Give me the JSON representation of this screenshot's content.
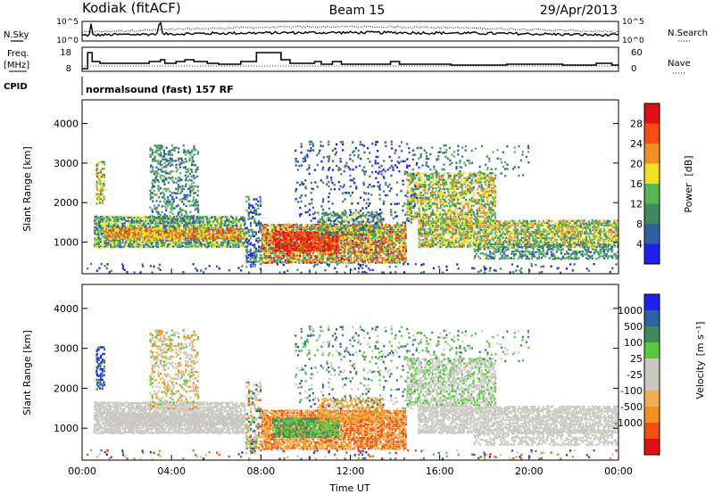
{
  "header": {
    "radar": "Kodiak (fitACF)",
    "beam": "Beam 15",
    "date": "29/Apr/2013"
  },
  "top_panels": {
    "nsky_label": "N.Sky",
    "nsearch_label": "N.Search",
    "noise_ticks": [
      "10^5",
      "10^0"
    ],
    "freq_label": "Freq.",
    "freq_unit": "[MHz]",
    "freq_ticks": [
      "18",
      "8"
    ],
    "nave_label": "Nave",
    "nave_ticks": [
      "60",
      "0"
    ],
    "cpid_label": "CPID",
    "cpid_text": "normalsound (fast) 157 RF"
  },
  "colors": {
    "power": [
      "#1f1ff0",
      "#2e5fa8",
      "#3f8a5c",
      "#58b450",
      "#f0e020",
      "#f09020",
      "#f04f10",
      "#e01010"
    ],
    "velocity": [
      "#e01010",
      "#f04f10",
      "#f09020",
      "#f0b050",
      "#c8c8c0",
      "#c8c8c0",
      "#58c840",
      "#3f8a5c",
      "#2e5fa8",
      "#1f1ff0"
    ]
  },
  "chart_data": [
    {
      "type": "line",
      "name": "noise",
      "series": [
        {
          "name": "N.Sky",
          "style": "solid"
        },
        {
          "name": "N.Search",
          "style": "dotted"
        }
      ],
      "ylim_labels": [
        "10^0",
        "10^5"
      ]
    },
    {
      "type": "line",
      "name": "frequency_nave",
      "xlim_hours": [
        0,
        24
      ],
      "freq_ylim": [
        8,
        18
      ],
      "nave_ylim": [
        0,
        60
      ],
      "freq_steps": [
        [
          0.0,
          8
        ],
        [
          0.25,
          17
        ],
        [
          0.45,
          12
        ],
        [
          0.8,
          11
        ],
        [
          2.5,
          11
        ],
        [
          3.0,
          12
        ],
        [
          3.5,
          13
        ],
        [
          3.7,
          11
        ],
        [
          4.2,
          12
        ],
        [
          4.6,
          13
        ],
        [
          5.0,
          12
        ],
        [
          5.6,
          11
        ],
        [
          6.1,
          10.5
        ],
        [
          7.1,
          12
        ],
        [
          7.8,
          17
        ],
        [
          8.9,
          13
        ],
        [
          9.3,
          11
        ],
        [
          10.4,
          12
        ],
        [
          10.7,
          10.5
        ],
        [
          11.2,
          12
        ],
        [
          11.6,
          10.5
        ],
        [
          13.8,
          12
        ],
        [
          14.2,
          10.5
        ],
        [
          16.5,
          10
        ],
        [
          19.0,
          10.5
        ],
        [
          20.5,
          10.5
        ],
        [
          21.5,
          10
        ],
        [
          23.0,
          11
        ],
        [
          23.7,
          10
        ]
      ]
    },
    {
      "type": "heatmap",
      "name": "power",
      "title": "Power",
      "unit": "[dB]",
      "xlabel": "",
      "ylabel": "Slant Range [km]",
      "xlim_hours": [
        0,
        24
      ],
      "ylim_km": [
        200,
        4600
      ],
      "yticks": [
        1000,
        2000,
        3000,
        4000
      ],
      "colorbar_ticks": [
        4,
        8,
        12,
        16,
        20,
        24,
        28
      ],
      "colorbar_range": [
        0,
        32
      ]
    },
    {
      "type": "heatmap",
      "name": "velocity",
      "title": "Velocity",
      "unit": "[m s⁻¹]",
      "xlabel": "Time UT",
      "ylabel": "Slant Range [km]",
      "xlim_hours": [
        0,
        24
      ],
      "ylim_km": [
        200,
        4600
      ],
      "yticks": [
        1000,
        2000,
        3000,
        4000
      ],
      "xticks": [
        "00:00",
        "04:00",
        "08:00",
        "12:00",
        "16:00",
        "20:00",
        "00:00"
      ],
      "colorbar_ticks": [
        1000,
        500,
        100,
        25,
        -25,
        -100,
        -500,
        -1000
      ]
    }
  ]
}
